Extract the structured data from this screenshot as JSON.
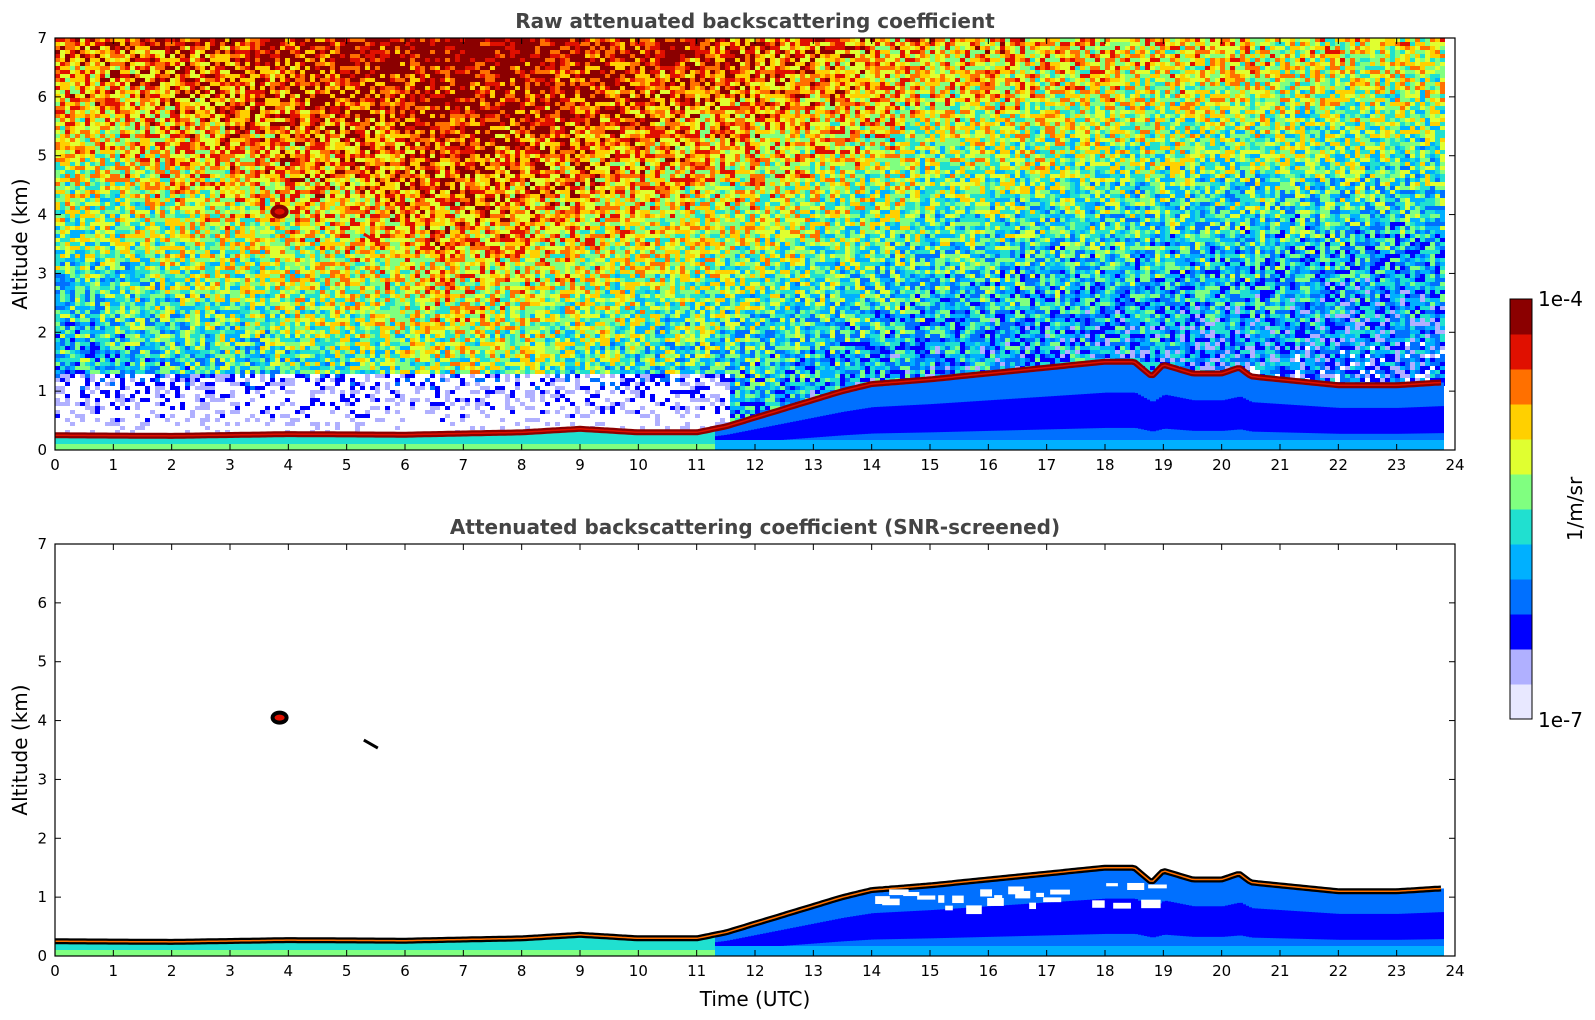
{
  "colors": {
    "colormap": [
      "#e8e8ff",
      "#b0b0ff",
      "#0000ff",
      "#0070ff",
      "#00b0ff",
      "#20e0d0",
      "#80ff80",
      "#e0ff30",
      "#ffd000",
      "#ff7000",
      "#e01000",
      "#8b0000"
    ],
    "screened_layer": "#000000"
  },
  "chart_data": [
    {
      "type": "heatmap",
      "title": "Raw attenuated backscattering coefficient",
      "xlabel": "",
      "ylabel": "Altitude (km)",
      "xlim": [
        0,
        24
      ],
      "ylim": [
        0,
        7
      ],
      "xticks": [
        "0",
        "1",
        "2",
        "3",
        "4",
        "5",
        "6",
        "7",
        "8",
        "9",
        "10",
        "11",
        "12",
        "13",
        "14",
        "15",
        "16",
        "17",
        "18",
        "19",
        "20",
        "21",
        "22",
        "23",
        "24"
      ],
      "yticks": [
        "0",
        "1",
        "2",
        "3",
        "4",
        "5",
        "6",
        "7"
      ],
      "data_end_time": 23.8,
      "aerosol_layer_top_km": {
        "x": [
          0,
          2,
          4,
          6,
          8,
          9,
          10,
          11,
          11.5,
          12,
          12.5,
          13,
          13.5,
          14,
          15,
          16,
          17,
          17.5,
          18,
          18.5,
          18.8,
          19,
          19.5,
          20,
          20.3,
          20.5,
          21,
          22,
          23,
          23.8
        ],
        "y": [
          0.25,
          0.24,
          0.27,
          0.26,
          0.3,
          0.36,
          0.3,
          0.3,
          0.4,
          0.55,
          0.7,
          0.85,
          1.0,
          1.12,
          1.2,
          1.3,
          1.4,
          1.45,
          1.5,
          1.5,
          1.25,
          1.45,
          1.3,
          1.3,
          1.4,
          1.25,
          1.2,
          1.1,
          1.1,
          1.15
        ]
      },
      "features": [
        {
          "type": "cloud",
          "time": 3.85,
          "altitude_km": 4.05
        },
        {
          "type": "cloud",
          "time": 5.5,
          "altitude_km": 3.6
        }
      ]
    },
    {
      "type": "heatmap",
      "title": "Attenuated backscattering coefficient (SNR-screened)",
      "xlabel": "Time (UTC)",
      "ylabel": "Altitude (km)",
      "xlim": [
        0,
        24
      ],
      "ylim": [
        0,
        7
      ],
      "xticks": [
        "0",
        "1",
        "2",
        "3",
        "4",
        "5",
        "6",
        "7",
        "8",
        "9",
        "10",
        "11",
        "12",
        "13",
        "14",
        "15",
        "16",
        "17",
        "18",
        "19",
        "20",
        "21",
        "22",
        "23",
        "24"
      ],
      "yticks": [
        "0",
        "1",
        "2",
        "3",
        "4",
        "5",
        "6",
        "7"
      ],
      "data_end_time": 23.8,
      "features": [
        {
          "type": "cloud",
          "time": 3.85,
          "altitude_km": 4.05
        },
        {
          "type": "cloud",
          "time": 5.5,
          "altitude_km": 3.6
        }
      ]
    }
  ],
  "colorbar": {
    "label": "1/m/sr",
    "max_label": "1e-4",
    "min_label": "1e-7",
    "scale": "log",
    "range": [
      1e-07,
      0.0001
    ]
  }
}
